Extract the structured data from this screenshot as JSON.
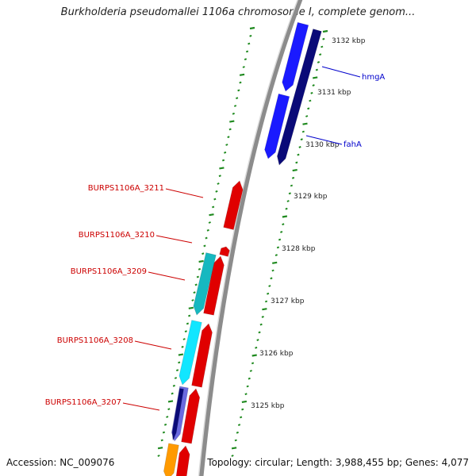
{
  "title": "Burkholderia pseudomallei 1106a chromosome I, complete genom...",
  "footer": {
    "accession_label": "Accession:",
    "accession": "NC_009076",
    "topology_label": "Topology:",
    "topology": "circular",
    "length_label": "Length:",
    "length": "3,988,455 bp",
    "genes_label": "Genes:",
    "genes": "4,077"
  },
  "colors": {
    "background": "#ffffff",
    "tick_green": "#1f8a1f",
    "backbone": "#8c8c8c",
    "gene_red": "#e00000",
    "gene_blue": "#1a1aff",
    "gene_navy": "#0a0a78",
    "gene_cyan": "#11e6ff",
    "gene_teal": "#16b8c0",
    "gene_orange": "#ff9a00",
    "label_red": "#cc0000",
    "label_blue": "#0000cc"
  },
  "scale_labels": [
    "3132 kbp",
    "3131 kbp",
    "3130 kbp",
    "3129 kbp",
    "3128 kbp",
    "3127 kbp",
    "3126 kbp",
    "3125 kbp"
  ],
  "gene_labels": [
    {
      "name": "hmgA",
      "color": "blue"
    },
    {
      "name": "fahA",
      "color": "blue"
    },
    {
      "name": "BURPS1106A_3211",
      "color": "red"
    },
    {
      "name": "BURPS1106A_3210",
      "color": "red"
    },
    {
      "name": "BURPS1106A_3209",
      "color": "red"
    },
    {
      "name": "BURPS1106A_3208",
      "color": "red"
    },
    {
      "name": "BURPS1106A_3207",
      "color": "red"
    }
  ]
}
